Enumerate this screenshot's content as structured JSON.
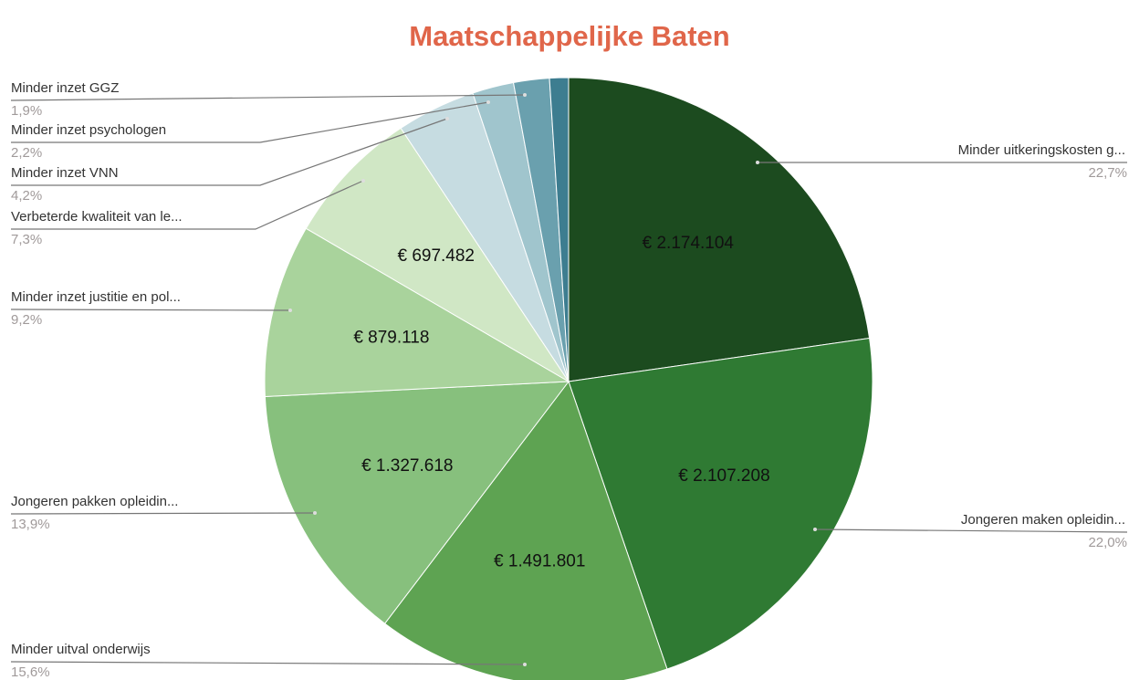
{
  "chart_data": {
    "type": "pie",
    "title": "Maatschappelijke Baten",
    "categories": [
      "Minder uitkeringskosten g...",
      "Jongeren maken opleidin...",
      "Minder uitval onderwijs",
      "Jongeren pakken opleidin...",
      "Minder inzet justitie en pol...",
      "Verbeterde kwaliteit van le...",
      "Minder inzet VNN",
      "Minder inzet psychologen",
      "Minder inzet GGZ",
      null
    ],
    "values": [
      2174104,
      2107208,
      1491801,
      1327618,
      879118,
      697482,
      402000,
      210700,
      182000,
      96000
    ],
    "value_labels": [
      "€ 2.174.104",
      "€ 2.107.208",
      "€ 1.491.801",
      "€ 1.327.618",
      "€ 879.118",
      "€ 697.482",
      null,
      null,
      null,
      null
    ],
    "percents": [
      22.7,
      22.0,
      15.6,
      13.9,
      9.2,
      7.3,
      4.2,
      2.2,
      1.9,
      null
    ],
    "percent_labels": [
      "22,7%",
      "22,0%",
      "15,6%",
      "13,9%",
      "9,2%",
      "7,3%",
      "4,2%",
      "2,2%",
      "1,9%",
      null
    ],
    "colors": [
      "#1c4b1f",
      "#2f7a33",
      "#5ea352",
      "#87c07d",
      "#a9d39c",
      "#d0e7c5",
      "#c6dce1",
      "#a0c5cd",
      "#6aa0ae",
      "#3d7d90"
    ]
  }
}
